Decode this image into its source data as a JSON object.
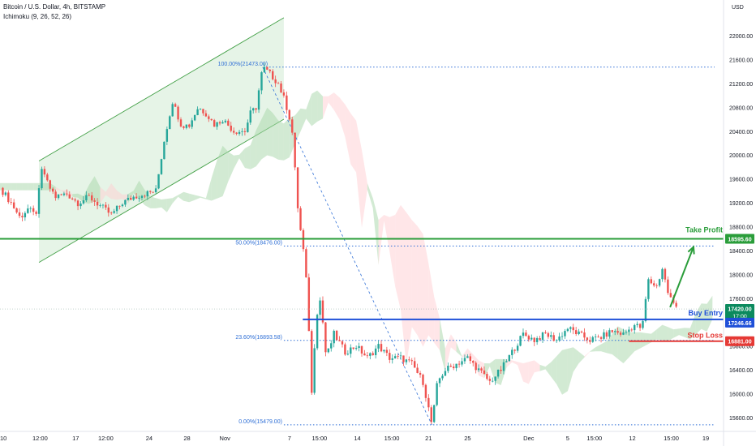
{
  "header": {
    "symbol": "Bitcoin / U.S. Dollar, 4h, BITSTAMP",
    "indicator": "Ichimoku (9, 26, 52, 26)"
  },
  "chart_data": {
    "type": "candlestick",
    "currency": "USD",
    "ylim": [
      15300,
      22500
    ],
    "y_ticks": [
      15600,
      16000,
      16400,
      16800,
      17200,
      17600,
      18000,
      18400,
      18800,
      19200,
      19600,
      20000,
      20400,
      20800,
      21200,
      21600,
      22000
    ],
    "x_ticks": [
      {
        "label": "10",
        "t": 0.3
      },
      {
        "label": "12:00",
        "t": 3.6
      },
      {
        "label": "17",
        "t": 6.8
      },
      {
        "label": "12:00",
        "t": 9.5
      },
      {
        "label": "24",
        "t": 13.4
      },
      {
        "label": "28",
        "t": 16.8
      },
      {
        "label": "Nov",
        "t": 20.2
      },
      {
        "label": "7",
        "t": 26.0
      },
      {
        "label": "15:00",
        "t": 28.7
      },
      {
        "label": "14",
        "t": 32.1
      },
      {
        "label": "15:00",
        "t": 35.2
      },
      {
        "label": "21",
        "t": 38.5
      },
      {
        "label": "25",
        "t": 42.0
      },
      {
        "label": "Dec",
        "t": 47.5
      },
      {
        "label": "5",
        "t": 51.0
      },
      {
        "label": "15:00",
        "t": 53.4
      },
      {
        "label": "12",
        "t": 56.8
      },
      {
        "label": "15:00",
        "t": 60.3
      },
      {
        "label": "19",
        "t": 63.4
      }
    ],
    "price_path": [
      [
        0.0,
        19450
      ],
      [
        1.0,
        19200
      ],
      [
        1.8,
        18950
      ],
      [
        2.5,
        19100
      ],
      [
        3.2,
        18980
      ],
      [
        3.8,
        19800
      ],
      [
        4.3,
        19500
      ],
      [
        5.0,
        19300
      ],
      [
        6.0,
        19350
      ],
      [
        7.0,
        19200
      ],
      [
        8.0,
        19300
      ],
      [
        9.0,
        19150
      ],
      [
        10.0,
        19000
      ],
      [
        11.0,
        19200
      ],
      [
        12.0,
        19300
      ],
      [
        13.0,
        19350
      ],
      [
        14.0,
        19400
      ],
      [
        14.8,
        20300
      ],
      [
        15.5,
        20900
      ],
      [
        16.3,
        20500
      ],
      [
        17.0,
        20500
      ],
      [
        17.8,
        20800
      ],
      [
        18.5,
        20700
      ],
      [
        19.3,
        20500
      ],
      [
        20.0,
        20600
      ],
      [
        21.0,
        20400
      ],
      [
        22.0,
        20400
      ],
      [
        22.5,
        20700
      ],
      [
        23.0,
        20800
      ],
      [
        23.6,
        21473
      ],
      [
        24.3,
        21350
      ],
      [
        25.0,
        21200
      ],
      [
        25.6,
        20900
      ],
      [
        26.2,
        20500
      ],
      [
        26.8,
        19000
      ],
      [
        27.4,
        18200
      ],
      [
        27.7,
        17300
      ],
      [
        28.0,
        16000
      ],
      [
        28.4,
        17300
      ],
      [
        28.8,
        17600
      ],
      [
        29.3,
        16600
      ],
      [
        30.0,
        17000
      ],
      [
        31.0,
        16700
      ],
      [
        32.0,
        16800
      ],
      [
        33.0,
        16600
      ],
      [
        34.0,
        16800
      ],
      [
        35.0,
        16600
      ],
      [
        36.0,
        16600
      ],
      [
        37.0,
        16500
      ],
      [
        38.0,
        16200
      ],
      [
        38.8,
        15479
      ],
      [
        39.3,
        16200
      ],
      [
        40.0,
        16400
      ],
      [
        41.0,
        16500
      ],
      [
        42.0,
        16600
      ],
      [
        43.0,
        16400
      ],
      [
        44.0,
        16200
      ],
      [
        45.0,
        16400
      ],
      [
        46.0,
        16700
      ],
      [
        47.0,
        17000
      ],
      [
        48.0,
        16900
      ],
      [
        49.0,
        17000
      ],
      [
        50.0,
        16900
      ],
      [
        51.0,
        17100
      ],
      [
        52.0,
        17000
      ],
      [
        53.0,
        16900
      ],
      [
        54.0,
        16950
      ],
      [
        55.0,
        17050
      ],
      [
        56.0,
        17000
      ],
      [
        57.0,
        17150
      ],
      [
        57.7,
        17100
      ],
      [
        58.2,
        17900
      ],
      [
        59.0,
        17800
      ],
      [
        59.5,
        18100
      ],
      [
        60.0,
        17700
      ],
      [
        60.5,
        17500
      ],
      [
        61.0,
        17420
      ]
    ],
    "fib_levels": [
      {
        "label": "100.00%(21473.00)",
        "value": 21473
      },
      {
        "label": "50.00%(18476.00)",
        "value": 18476
      },
      {
        "label": "23.60%(16893.58)",
        "value": 16893.58
      },
      {
        "label": "0.00%(15479.00)",
        "value": 15479
      }
    ],
    "levels": [
      {
        "name": "Take Profit",
        "value": 18595.6,
        "label": "18595.60",
        "color": "#2a9d3a"
      },
      {
        "name": "Buy Entry",
        "value": 17246.66,
        "label": "17246.66",
        "color": "#1e4fd8"
      },
      {
        "name": "Stop Loss",
        "value": 16881.0,
        "label": "16881.00",
        "color": "#e53935"
      }
    ],
    "last_price": {
      "value": 17420.0,
      "label": "17420.00",
      "countdown": "17:00",
      "color": "#0b8a5e"
    },
    "channel": {
      "lower": [
        [
          3.5,
          18200
        ],
        [
          25.5,
          20600
        ]
      ],
      "upper": [
        [
          3.5,
          19900
        ],
        [
          25.5,
          22300
        ]
      ]
    },
    "forecast_arrow": [
      [
        60.2,
        17450
      ],
      [
        62.3,
        18460
      ]
    ],
    "colors": {
      "up": "#26a69a",
      "down": "#ef5350",
      "cloud_green": "#a5d6a7",
      "cloud_red": "#ffcdd2",
      "fib": "#2f6fd6"
    }
  }
}
